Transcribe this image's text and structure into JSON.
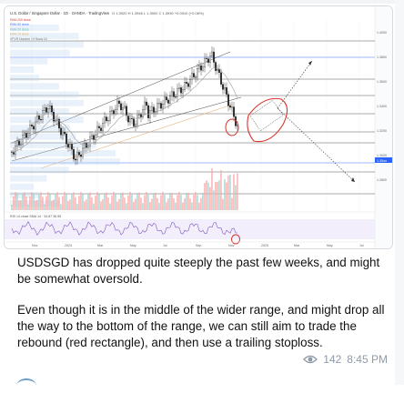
{
  "chart": {
    "header": "U.S. Dollar / Singapore Dollar · 1D · OANDA · TradingView",
    "ohlc": "O 1.3920 H 1.3946 L 1.3902 C 1.3930 +0.0010 (+0.06%)",
    "indicators": [
      "EMA 200 close",
      "EMA 50 close",
      "EMA 20 close",
      "EMA 10 close",
      "VPVR Number Of Rows 24"
    ],
    "x_labels": [
      "Nov",
      "2024",
      "Mar",
      "May",
      "Jul",
      "Sep",
      "Nov",
      "2025",
      "Mar",
      "May",
      "Jul"
    ],
    "y_labels": [
      "1.4000",
      "1.3800",
      "1.3600",
      "1.3400",
      "1.3200",
      "1.3000",
      "1.2800"
    ],
    "price_tag": "1.35xx",
    "rsi_label": "RSI 14 close SMA 14 · 34.87 36.95",
    "accent_red": "#d8342c",
    "up_color": "#26a69a",
    "down_color": "#ef5350"
  },
  "message": {
    "paragraph_1": "USDSGD has dropped quite steeply the past few weeks, and might be somewhat oversold.",
    "paragraph_2": "Even though it is in the middle of the wider range, and might drop all the way to the bottom of the range, we can still aim to trade the rebound (red rectangle), and then use a trailing stoploss.",
    "views": "142",
    "time": "8:45 PM"
  }
}
